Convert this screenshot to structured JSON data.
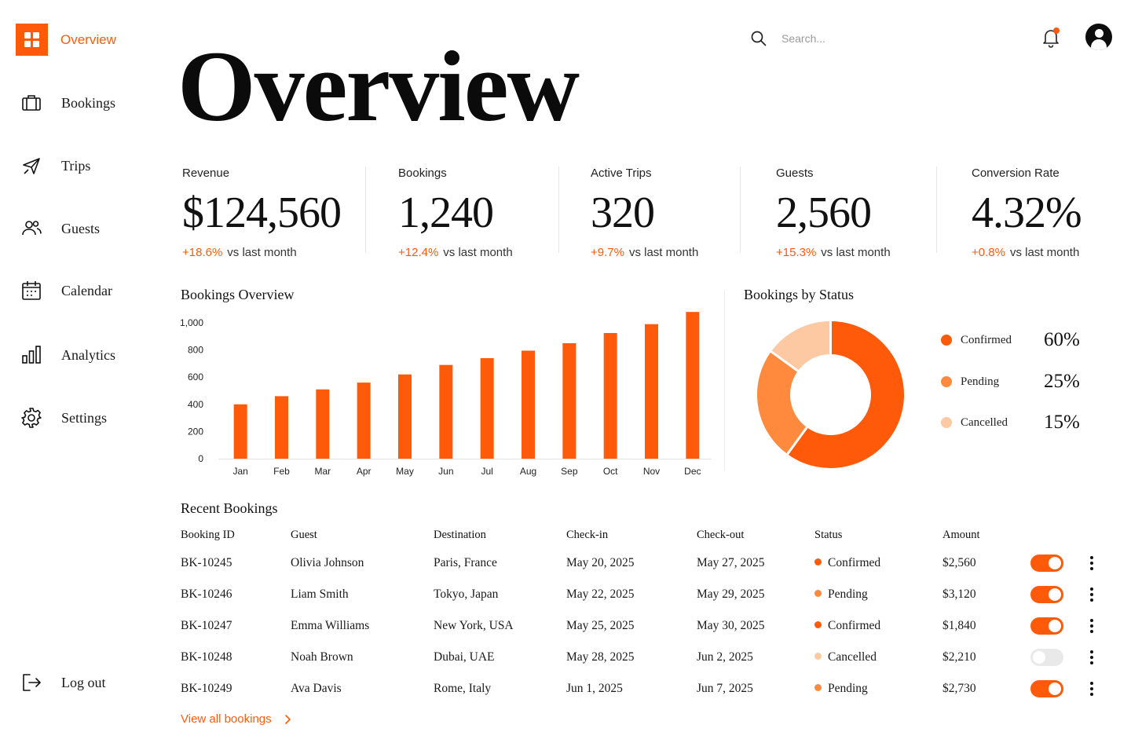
{
  "sidebar": {
    "logo_label": "Overview",
    "items": [
      {
        "label": "Bookings",
        "icon": "briefcase-icon"
      },
      {
        "label": "Trips",
        "icon": "plane-icon"
      },
      {
        "label": "Guests",
        "icon": "users-icon"
      },
      {
        "label": "Calendar",
        "icon": "calendar-icon"
      },
      {
        "label": "Analytics",
        "icon": "bar-chart-icon"
      },
      {
        "label": "Settings",
        "icon": "gear-icon"
      }
    ],
    "logout_label": "Log out"
  },
  "topbar": {
    "search_placeholder": "Search...",
    "notification_dot": true
  },
  "page_title": "Overview",
  "kpis": [
    {
      "label": "Revenue",
      "value": "$124,560",
      "change": "+18.6%",
      "vs": "vs last month"
    },
    {
      "label": "Bookings",
      "value": "1,240",
      "change": "+12.4%",
      "vs": "vs last month"
    },
    {
      "label": "Active Trips",
      "value": "320",
      "change": "+9.7%",
      "vs": "vs last month"
    },
    {
      "label": "Guests",
      "value": "2,560",
      "change": "+15.3%",
      "vs": "vs last month"
    },
    {
      "label": "Conversion Rate",
      "value": "4.32%",
      "change": "+0.8%",
      "vs": "vs last month"
    }
  ],
  "colors": {
    "accent": "#ff5a0a",
    "pending": "#ff8a3d",
    "cancelled": "#fcc9a3"
  },
  "chart_data": [
    {
      "type": "bar",
      "title": "Bookings Overview",
      "categories": [
        "Jan",
        "Feb",
        "Mar",
        "Apr",
        "May",
        "Jun",
        "Jul",
        "Aug",
        "Sep",
        "Oct",
        "Nov",
        "Dec"
      ],
      "values": [
        400,
        460,
        510,
        560,
        620,
        690,
        740,
        795,
        850,
        925,
        990,
        1080
      ],
      "yticks": [
        "0",
        "200",
        "400",
        "600",
        "800",
        "1,000"
      ],
      "ylim": [
        0,
        1000
      ],
      "grid": false
    },
    {
      "type": "pie",
      "title": "Bookings by Status",
      "labels": [
        "Confirmed",
        "Pending",
        "Cancelled"
      ],
      "values": [
        60,
        25,
        15
      ],
      "display": [
        "60%",
        "25%",
        "15%"
      ],
      "donut": true,
      "legend": "right"
    }
  ],
  "table": {
    "title": "Recent Bookings",
    "headers": [
      "Booking ID",
      "Guest",
      "Destination",
      "Check-in",
      "Check-out",
      "Status",
      "Amount"
    ],
    "rows": [
      {
        "id": "BK-10245",
        "guest": "Olivia Johnson",
        "destination": "Paris, France",
        "checkin": "May 20, 2025",
        "checkout": "May 27, 2025",
        "status": "Confirmed",
        "amount": "$2,560",
        "enabled": true
      },
      {
        "id": "BK-10246",
        "guest": "Liam Smith",
        "destination": "Tokyo, Japan",
        "checkin": "May 22, 2025",
        "checkout": "May 29, 2025",
        "status": "Pending",
        "amount": "$3,120",
        "enabled": true
      },
      {
        "id": "BK-10247",
        "guest": "Emma Williams",
        "destination": "New York, USA",
        "checkin": "May 25, 2025",
        "checkout": "May 30, 2025",
        "status": "Confirmed",
        "amount": "$1,840",
        "enabled": true
      },
      {
        "id": "BK-10248",
        "guest": "Noah Brown",
        "destination": "Dubai, UAE",
        "checkin": "May 28, 2025",
        "checkout": "Jun 2, 2025",
        "status": "Cancelled",
        "amount": "$2,210",
        "enabled": false
      },
      {
        "id": "BK-10249",
        "guest": "Ava Davis",
        "destination": "Rome, Italy",
        "checkin": "Jun 1, 2025",
        "checkout": "Jun 7, 2025",
        "status": "Pending",
        "amount": "$2,730",
        "enabled": true
      }
    ],
    "view_all_label": "View all bookings"
  }
}
